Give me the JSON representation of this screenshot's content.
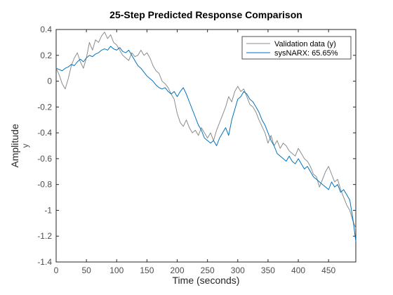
{
  "chart_data": {
    "type": "line",
    "title": "25-Step Predicted Response Comparison",
    "xlabel": "Time (seconds)",
    "ylabel": "Amplitude",
    "ylabel_sub": "y",
    "xlim": [
      0,
      495
    ],
    "ylim": [
      -1.4,
      0.4
    ],
    "xticks": [
      0,
      50,
      100,
      150,
      200,
      250,
      300,
      350,
      400,
      450
    ],
    "yticks": [
      -1.4,
      -1.2,
      -1,
      -0.8,
      -0.6,
      -0.4,
      -0.2,
      0,
      0.2,
      0.4
    ],
    "ytick_labels": [
      "-1.4",
      "-1.2",
      "-1",
      "-0.8",
      "-0.6",
      "-0.4",
      "-0.2",
      "0",
      "0.2",
      "0.4"
    ],
    "grid": false,
    "legend_position": "top-right",
    "series": [
      {
        "name": "Validation data (y)",
        "color": "#8c8c8c",
        "x": [
          0,
          5,
          10,
          15,
          20,
          25,
          30,
          35,
          40,
          45,
          50,
          55,
          60,
          65,
          70,
          75,
          80,
          85,
          90,
          95,
          100,
          105,
          110,
          115,
          120,
          125,
          130,
          135,
          140,
          145,
          150,
          155,
          160,
          165,
          170,
          175,
          180,
          185,
          190,
          195,
          200,
          205,
          210,
          215,
          220,
          225,
          230,
          235,
          240,
          245,
          250,
          255,
          260,
          265,
          270,
          275,
          280,
          285,
          290,
          295,
          300,
          305,
          310,
          315,
          320,
          325,
          330,
          335,
          340,
          345,
          350,
          355,
          360,
          365,
          370,
          375,
          380,
          385,
          390,
          395,
          400,
          405,
          410,
          415,
          420,
          425,
          430,
          435,
          440,
          445,
          450,
          455,
          460,
          465,
          470,
          475,
          480,
          485,
          490,
          495
        ],
        "values": [
          0.1,
          0.05,
          -0.02,
          -0.06,
          0.02,
          0.12,
          0.18,
          0.22,
          0.15,
          0.1,
          0.18,
          0.3,
          0.24,
          0.32,
          0.3,
          0.35,
          0.38,
          0.33,
          0.36,
          0.3,
          0.28,
          0.24,
          0.2,
          0.18,
          0.16,
          0.22,
          0.19,
          0.2,
          0.24,
          0.2,
          0.22,
          0.18,
          0.12,
          0.08,
          0.06,
          0.0,
          -0.02,
          -0.05,
          -0.1,
          -0.14,
          -0.25,
          -0.32,
          -0.35,
          -0.3,
          -0.36,
          -0.4,
          -0.38,
          -0.42,
          -0.36,
          -0.4,
          -0.44,
          -0.4,
          -0.46,
          -0.38,
          -0.32,
          -0.26,
          -0.2,
          -0.12,
          -0.16,
          -0.08,
          -0.04,
          -0.08,
          -0.06,
          -0.12,
          -0.18,
          -0.2,
          -0.24,
          -0.3,
          -0.35,
          -0.4,
          -0.48,
          -0.42,
          -0.5,
          -0.46,
          -0.52,
          -0.48,
          -0.5,
          -0.54,
          -0.56,
          -0.58,
          -0.52,
          -0.56,
          -0.6,
          -0.62,
          -0.66,
          -0.72,
          -0.74,
          -0.82,
          -0.76,
          -0.7,
          -0.66,
          -0.72,
          -0.78,
          -0.76,
          -0.84,
          -0.9,
          -0.96,
          -1.0,
          -1.08,
          -1.14
        ]
      },
      {
        "name": "sysNARX: 65.65%",
        "color": "#0072bd",
        "x": [
          0,
          5,
          10,
          15,
          20,
          25,
          30,
          35,
          40,
          45,
          50,
          55,
          60,
          65,
          70,
          75,
          80,
          85,
          90,
          95,
          100,
          105,
          110,
          115,
          120,
          125,
          130,
          135,
          140,
          145,
          150,
          155,
          160,
          165,
          170,
          175,
          180,
          185,
          190,
          195,
          200,
          205,
          210,
          215,
          220,
          225,
          230,
          235,
          240,
          245,
          250,
          255,
          260,
          265,
          270,
          275,
          280,
          285,
          290,
          295,
          300,
          305,
          310,
          315,
          320,
          325,
          330,
          335,
          340,
          345,
          350,
          355,
          360,
          365,
          370,
          375,
          380,
          385,
          390,
          395,
          400,
          405,
          410,
          415,
          420,
          425,
          430,
          435,
          440,
          445,
          450,
          455,
          460,
          465,
          470,
          475,
          480,
          485,
          490,
          495
        ],
        "values": [
          0.1,
          0.09,
          0.08,
          0.1,
          0.11,
          0.13,
          0.12,
          0.15,
          0.17,
          0.15,
          0.18,
          0.2,
          0.19,
          0.21,
          0.22,
          0.24,
          0.25,
          0.24,
          0.27,
          0.25,
          0.24,
          0.26,
          0.23,
          0.22,
          0.24,
          0.2,
          0.16,
          0.12,
          0.1,
          0.07,
          0.04,
          0.02,
          0.0,
          -0.03,
          -0.05,
          -0.06,
          -0.05,
          -0.08,
          -0.1,
          -0.08,
          -0.12,
          -0.08,
          -0.05,
          -0.1,
          -0.16,
          -0.22,
          -0.28,
          -0.34,
          -0.38,
          -0.44,
          -0.46,
          -0.48,
          -0.46,
          -0.5,
          -0.44,
          -0.4,
          -0.36,
          -0.42,
          -0.3,
          -0.22,
          -0.14,
          -0.12,
          -0.08,
          -0.1,
          -0.14,
          -0.16,
          -0.2,
          -0.24,
          -0.3,
          -0.34,
          -0.4,
          -0.46,
          -0.5,
          -0.56,
          -0.58,
          -0.6,
          -0.62,
          -0.58,
          -0.62,
          -0.64,
          -0.6,
          -0.64,
          -0.68,
          -0.66,
          -0.7,
          -0.74,
          -0.76,
          -0.78,
          -0.8,
          -0.82,
          -0.84,
          -0.78,
          -0.82,
          -0.8,
          -0.86,
          -0.84,
          -0.88,
          -0.92,
          -1.06,
          -1.24
        ]
      }
    ]
  }
}
